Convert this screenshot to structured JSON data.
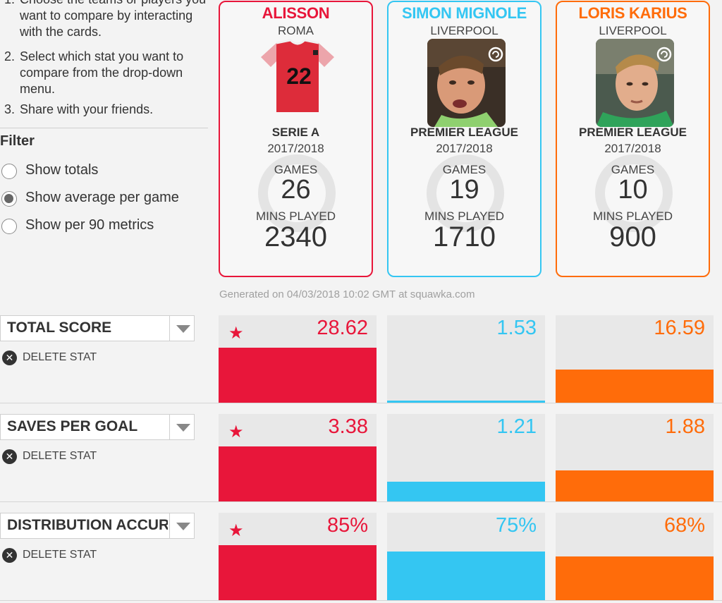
{
  "instructions": [
    {
      "num": "1.",
      "text": "Choose the teams or players you want to compare by interacting with the cards."
    },
    {
      "num": "2.",
      "text": "Select which stat you want to compare from the drop-down menu."
    },
    {
      "num": "3.",
      "text": "Share with your friends."
    }
  ],
  "filter": {
    "title": "Filter",
    "options": [
      {
        "label": "Show totals",
        "selected": false
      },
      {
        "label": "Show average per game",
        "selected": true
      },
      {
        "label": "Show per 90 metrics",
        "selected": false
      }
    ]
  },
  "players": [
    {
      "name": "ALISSON",
      "team": "ROMA",
      "shirt_number": "22",
      "league": "SERIE A",
      "season": "2017/2018",
      "games_label": "GAMES",
      "games": "26",
      "mins_label": "MINS PLAYED",
      "mins": "2340",
      "color": "#e8163a"
    },
    {
      "name": "SIMON MIGNOLE",
      "team": "LIVERPOOL",
      "league": "PREMIER LEAGUE",
      "season": "2017/2018",
      "games_label": "GAMES",
      "games": "19",
      "mins_label": "MINS PLAYED",
      "mins": "1710",
      "color": "#34c6f2"
    },
    {
      "name": "LORIS KARIUS",
      "team": "LIVERPOOL",
      "league": "PREMIER LEAGUE",
      "season": "2017/2018",
      "games_label": "GAMES",
      "games": "10",
      "mins_label": "MINS PLAYED",
      "mins": "900",
      "color": "#ff6c0a"
    }
  ],
  "generated": "Generated on 04/03/2018 10:02 GMT at squawka.com",
  "stats": [
    {
      "label": "TOTAL SCORE",
      "delete_label": "DELETE STAT",
      "values": [
        "28.62",
        "1.53",
        "16.59"
      ],
      "bar_fractions": [
        1.0,
        0.04,
        0.6
      ],
      "leader": 0
    },
    {
      "label": "SAVES PER GOAL",
      "delete_label": "DELETE STAT",
      "values": [
        "3.38",
        "1.21",
        "1.88"
      ],
      "bar_fractions": [
        1.0,
        0.36,
        0.56
      ],
      "leader": 0
    },
    {
      "label": "DISTRIBUTION ACCURACY",
      "delete_label": "DELETE STAT",
      "values": [
        "85%",
        "75%",
        "68%"
      ],
      "bar_fractions": [
        1.0,
        0.88,
        0.79
      ],
      "leader": 0
    }
  ],
  "icons": {
    "leader": "star-icon",
    "dropdown": "chevron-down-icon",
    "delete": "close-circle-icon",
    "photo_badge": "squawka-badge-icon"
  }
}
